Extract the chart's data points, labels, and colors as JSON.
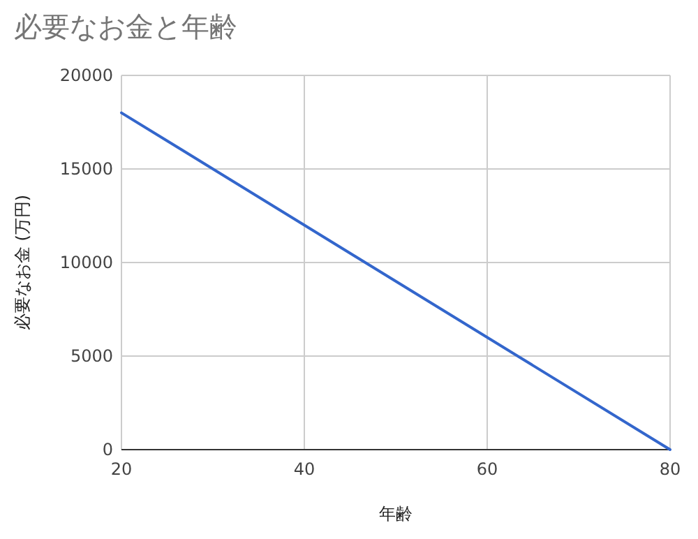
{
  "chart_data": {
    "type": "line",
    "title": "必要なお金と年齢",
    "xlabel": "年齢",
    "ylabel": "必要なお金 (万円)",
    "x": [
      20,
      80
    ],
    "series": [
      {
        "color": "#3366cc",
        "values": [
          18000,
          0
        ]
      }
    ],
    "xlim": [
      20,
      80
    ],
    "xticks": [
      20,
      40,
      60,
      80
    ],
    "ylim": [
      0,
      20000
    ],
    "yticks": [
      0,
      5000,
      10000,
      15000,
      20000
    ],
    "grid": true,
    "marker": "none",
    "line_style": "solid"
  }
}
